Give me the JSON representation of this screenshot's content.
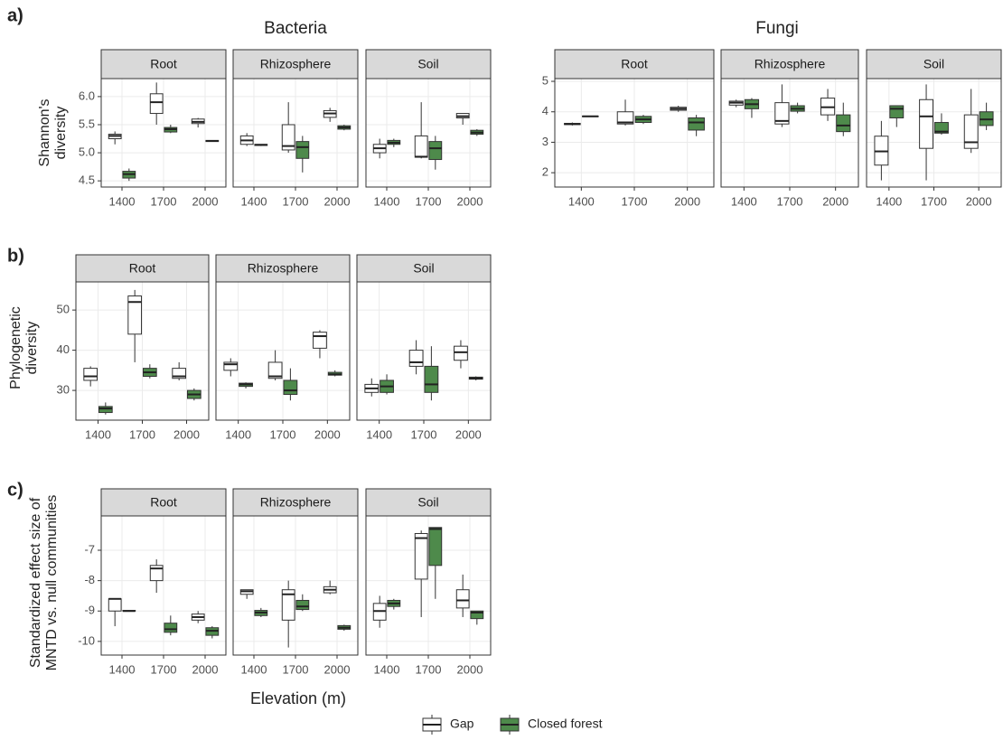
{
  "chart_data": {
    "type": "boxplot",
    "categories": [
      "1400",
      "1700",
      "2000"
    ],
    "facets": [
      "Root",
      "Rhizosphere",
      "Soil"
    ],
    "x_label": "Elevation (m)",
    "series": [
      {
        "name": "Gap",
        "color": "#ffffff"
      },
      {
        "name": "Closed forest",
        "color": "#4e8a4b"
      }
    ],
    "legend": "bottom",
    "grid": true,
    "panels": [
      {
        "tag": "a)",
        "title": "Bacteria",
        "y_label": [
          "Shannon's",
          "diversity"
        ],
        "ylim": [
          4.39,
          6.32
        ],
        "yticks": [
          4.5,
          {
            "value": 5,
            "label": "5.0"
          },
          5.5,
          {
            "value": 6,
            "label": "6.0"
          }
        ],
        "boxes": [
          [
            [
              [
                5.15,
                5.25,
                5.3,
                5.33,
                5.38
              ],
              [
                5.5,
                5.7,
                5.9,
                6.05,
                6.25
              ],
              [
                5.45,
                5.52,
                5.55,
                5.6,
                5.62
              ]
            ],
            [
              [
                4.5,
                4.55,
                4.62,
                4.67,
                4.72
              ],
              [
                5.35,
                5.37,
                5.42,
                5.45,
                5.5
              ],
              [
                5.2,
                5.2,
                5.21,
                5.22,
                5.22
              ]
            ]
          ],
          [
            [
              [
                5.12,
                5.15,
                5.22,
                5.3,
                5.35
              ],
              [
                5.0,
                5.05,
                5.12,
                5.5,
                5.9
              ],
              [
                5.55,
                5.63,
                5.7,
                5.75,
                5.8
              ]
            ],
            [
              [
                5.12,
                5.13,
                5.14,
                5.15,
                5.15
              ],
              [
                4.65,
                4.9,
                5.1,
                5.2,
                5.3
              ],
              [
                5.4,
                5.42,
                5.45,
                5.48,
                5.5
              ]
            ]
          ],
          [
            [
              [
                4.9,
                5.0,
                5.08,
                5.15,
                5.25
              ],
              [
                4.9,
                4.92,
                4.93,
                5.3,
                5.9
              ],
              [
                5.5,
                5.62,
                5.65,
                5.7,
                5.7
              ]
            ],
            [
              [
                5.1,
                5.15,
                5.18,
                5.22,
                5.25
              ],
              [
                4.7,
                4.88,
                5.08,
                5.2,
                5.3
              ],
              [
                5.3,
                5.33,
                5.36,
                5.4,
                5.42
              ]
            ]
          ]
        ]
      },
      {
        "title": "Fungi",
        "ylim": [
          1.53,
          5.09
        ],
        "yticks": [
          2,
          3,
          4,
          5
        ],
        "boxes": [
          [
            [
              [
                3.55,
                3.58,
                3.6,
                3.62,
                3.65
              ],
              [
                3.55,
                3.6,
                3.65,
                4.0,
                4.4
              ],
              [
                4.0,
                4.05,
                4.1,
                4.15,
                4.2
              ]
            ],
            [
              [
                3.83,
                3.84,
                3.85,
                3.86,
                3.87
              ],
              [
                3.6,
                3.65,
                3.75,
                3.85,
                3.9
              ],
              [
                3.2,
                3.4,
                3.65,
                3.8,
                3.9
              ]
            ]
          ],
          [
            [
              [
                4.15,
                4.22,
                4.3,
                4.35,
                4.4
              ],
              [
                3.5,
                3.6,
                3.7,
                4.3,
                4.9
              ],
              [
                3.7,
                3.9,
                4.15,
                4.45,
                4.75
              ]
            ],
            [
              [
                3.8,
                4.1,
                4.25,
                4.4,
                4.45
              ],
              [
                3.95,
                4.02,
                4.1,
                4.2,
                4.3
              ],
              [
                3.2,
                3.35,
                3.55,
                3.9,
                4.3
              ]
            ]
          ],
          [
            [
              [
                1.75,
                2.25,
                2.7,
                3.2,
                3.7
              ],
              [
                1.75,
                2.8,
                3.85,
                4.4,
                4.9
              ],
              [
                2.65,
                2.8,
                3.0,
                3.9,
                4.75
              ]
            ],
            [
              [
                3.5,
                3.8,
                4.1,
                4.2,
                4.2
              ],
              [
                3.25,
                3.3,
                3.35,
                3.65,
                3.95
              ],
              [
                3.4,
                3.55,
                3.75,
                4.0,
                4.3
              ]
            ]
          ]
        ]
      },
      {
        "tag": "b)",
        "y_label": [
          "Phylogenetic",
          "diversity"
        ],
        "ylim": [
          22.6,
          57
        ],
        "yticks": [
          30,
          40,
          50
        ],
        "boxes": [
          [
            [
              [
                31,
                32.5,
                33.5,
                35.5,
                36
              ],
              [
                37,
                44,
                52,
                53.5,
                55
              ],
              [
                32.5,
                33,
                33.5,
                35.5,
                37
              ]
            ],
            [
              [
                24,
                24.5,
                25.5,
                26,
                27
              ],
              [
                33,
                33.5,
                34.5,
                35.5,
                36.5
              ],
              [
                27.5,
                28,
                29,
                30,
                30.5
              ]
            ]
          ],
          [
            [
              [
                33.5,
                35,
                36.5,
                37,
                38
              ],
              [
                32.5,
                33,
                33.5,
                37,
                40
              ],
              [
                38,
                40.5,
                43.5,
                44.5,
                45
              ]
            ],
            [
              [
                30.5,
                31,
                31.5,
                31.8,
                32
              ],
              [
                27.5,
                29,
                30,
                32.5,
                35.5
              ],
              [
                33.5,
                33.8,
                34,
                34.5,
                35
              ]
            ]
          ],
          [
            [
              [
                28.5,
                29.5,
                30.5,
                31.5,
                33
              ],
              [
                34,
                36,
                37,
                40,
                42.5
              ],
              [
                35.5,
                37.5,
                39.5,
                41,
                42.5
              ]
            ],
            [
              [
                29,
                29.5,
                31,
                32.5,
                34
              ],
              [
                27.5,
                29.5,
                31.5,
                36,
                41
              ],
              [
                32.5,
                32.8,
                33,
                33.3,
                33.5
              ]
            ]
          ]
        ]
      },
      {
        "tag": "c)",
        "y_label": [
          "Standardized effect size of",
          "MNTD vs. null communities"
        ],
        "ylim": [
          -10.45,
          -5.87
        ],
        "yticks": [
          -10,
          -9,
          -8,
          -7
        ],
        "boxes": [
          [
            [
              [
                -9.5,
                -9.0,
                -8.6,
                -8.6,
                -8.6
              ],
              [
                -8.4,
                -8.0,
                -7.6,
                -7.5,
                -7.3
              ],
              [
                -9.4,
                -9.3,
                -9.2,
                -9.1,
                -9.0
              ]
            ],
            [
              [
                -9.0,
                -9.0,
                -9.0,
                -8.98,
                -8.97
              ],
              [
                -9.8,
                -9.7,
                -9.6,
                -9.4,
                -9.15
              ],
              [
                -9.9,
                -9.8,
                -9.65,
                -9.55,
                -9.5
              ]
            ]
          ],
          [
            [
              [
                -8.6,
                -8.45,
                -8.35,
                -8.3,
                -8.3
              ],
              [
                -10.2,
                -9.3,
                -8.45,
                -8.3,
                -8.0
              ],
              [
                -8.45,
                -8.4,
                -8.3,
                -8.2,
                -8.0
              ]
            ],
            [
              [
                -9.2,
                -9.15,
                -9.05,
                -8.98,
                -8.9
              ],
              [
                -9.0,
                -8.95,
                -8.85,
                -8.65,
                -8.45
              ],
              [
                -9.65,
                -9.6,
                -9.55,
                -9.48,
                -9.45
              ]
            ]
          ],
          [
            [
              [
                -9.55,
                -9.3,
                -9.0,
                -8.75,
                -8.5
              ],
              [
                -9.2,
                -7.95,
                -6.6,
                -6.45,
                -6.35
              ],
              [
                -9.2,
                -8.9,
                -8.65,
                -8.3,
                -7.8
              ]
            ],
            [
              [
                -8.95,
                -8.85,
                -8.75,
                -8.65,
                -8.6
              ],
              [
                -8.6,
                -7.5,
                -6.3,
                -6.25,
                -6.25
              ],
              [
                -9.45,
                -9.25,
                -9.05,
                -9.0,
                -9.0
              ]
            ]
          ]
        ]
      }
    ]
  }
}
